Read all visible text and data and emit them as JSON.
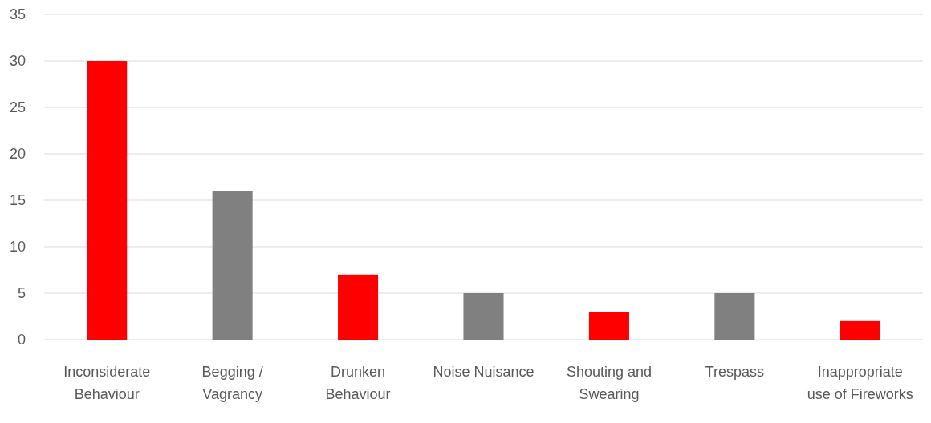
{
  "chart_data": {
    "type": "bar",
    "categories": [
      "Inconsiderate Behaviour",
      "Begging / Vagrancy",
      "Drunken Behaviour",
      "Noise Nuisance",
      "Shouting and Swearing",
      "Trespass",
      "Inappropriate use of Fireworks"
    ],
    "values": [
      30,
      16,
      7,
      5,
      3,
      5,
      2
    ],
    "colors": [
      "#ff0000",
      "#808080",
      "#ff0000",
      "#808080",
      "#ff0000",
      "#808080",
      "#ff0000"
    ],
    "ylim": [
      0,
      35
    ],
    "yticks": [
      0,
      5,
      10,
      15,
      20,
      25,
      30,
      35
    ],
    "grid": "y"
  }
}
